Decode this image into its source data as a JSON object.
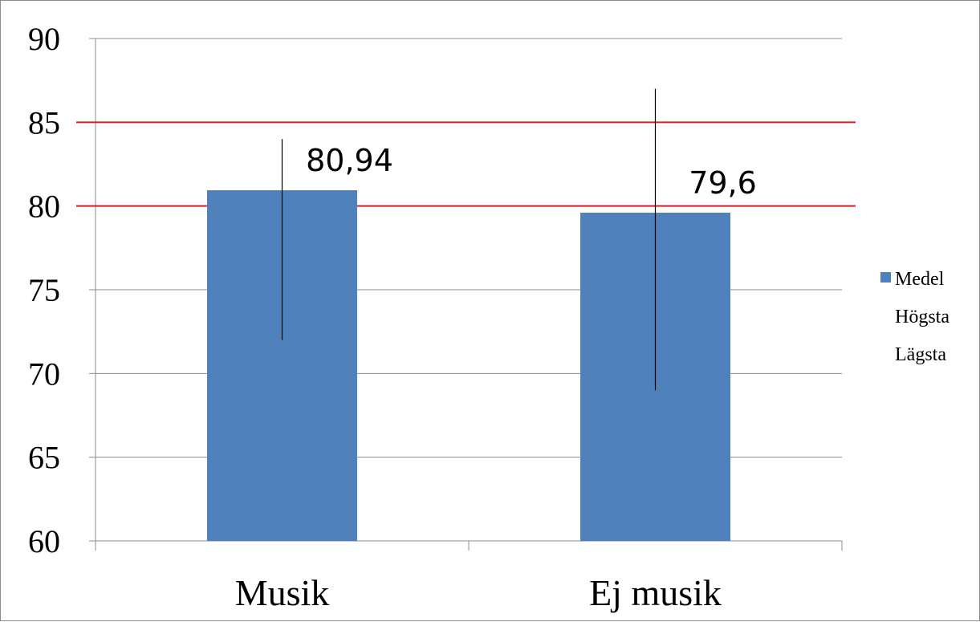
{
  "chart_data": {
    "type": "bar",
    "categories": [
      "Musik",
      "Ej musik"
    ],
    "series": [
      {
        "name": "Medel",
        "values": [
          80.94,
          79.6
        ],
        "color": "#4f81bd"
      },
      {
        "name": "Högsta",
        "values": [
          84,
          87
        ]
      },
      {
        "name": "Lägsta",
        "values": [
          72,
          69
        ]
      }
    ],
    "data_labels": [
      "80,94",
      "79,6"
    ],
    "y_ticks": [
      "60",
      "65",
      "70",
      "75",
      "80",
      "85",
      "90"
    ],
    "ylim": [
      60,
      90
    ],
    "reference_lines": [
      80,
      85
    ],
    "reference_line_color": "#e31a1c",
    "error_bar_color": "#000000",
    "grid": true,
    "legend_position": "right",
    "title": "",
    "xlabel": "",
    "ylabel": ""
  }
}
